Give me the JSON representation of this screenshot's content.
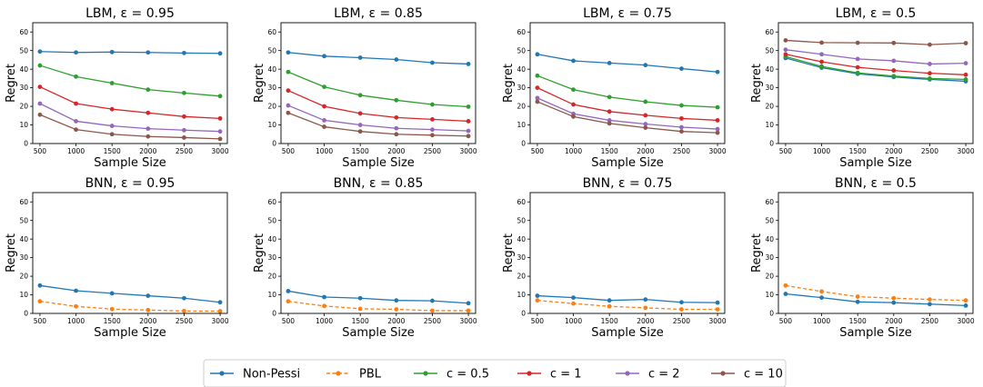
{
  "figure": {
    "legend": {
      "placement": "bottom-center",
      "entries": [
        {
          "name": "Non-Pessi",
          "color": "#1f77b4",
          "dashed": false
        },
        {
          "name": "PBL",
          "color": "#ff7f0e",
          "dashed": true
        },
        {
          "name": "c = 0.5",
          "color": "#2ca02c",
          "dashed": false
        },
        {
          "name": "c = 1",
          "color": "#d62728",
          "dashed": false
        },
        {
          "name": "c = 2",
          "color": "#9467bd",
          "dashed": false
        },
        {
          "name": "c = 10",
          "color": "#8c564b",
          "dashed": false
        }
      ]
    }
  },
  "chart_data": [
    {
      "type": "line",
      "title": "LBM, ε = 0.95",
      "xlabel": "Sample Size",
      "ylabel": "Regret",
      "x": [
        500,
        1000,
        1500,
        2000,
        2500,
        3000
      ],
      "xticks": [
        "500",
        "1000",
        "1500",
        "2000",
        "2500",
        "3000"
      ],
      "ylim": [
        0,
        65
      ],
      "yticks": [
        "0",
        "10",
        "20",
        "30",
        "40",
        "50",
        "60"
      ],
      "grid": false,
      "series": [
        {
          "name": "Non-Pessi",
          "color": "#1f77b4",
          "dashed": false,
          "values": [
            49.5,
            49,
            49.2,
            49,
            48.7,
            48.5
          ]
        },
        {
          "name": "c = 0.5",
          "color": "#2ca02c",
          "dashed": false,
          "values": [
            42,
            36,
            32.5,
            29,
            27.2,
            25.5
          ]
        },
        {
          "name": "c = 1",
          "color": "#d62728",
          "dashed": false,
          "values": [
            30.5,
            21.5,
            18.5,
            16.5,
            14.5,
            13.5
          ]
        },
        {
          "name": "c = 2",
          "color": "#9467bd",
          "dashed": false,
          "values": [
            21.5,
            12,
            9.5,
            8,
            7.2,
            6.5
          ]
        },
        {
          "name": "c = 10",
          "color": "#8c564b",
          "dashed": false,
          "values": [
            15.5,
            7.5,
            5,
            3.8,
            3.2,
            2.5
          ]
        }
      ]
    },
    {
      "type": "line",
      "title": "LBM, ε = 0.85",
      "xlabel": "Sample Size",
      "ylabel": "Regret",
      "x": [
        500,
        1000,
        1500,
        2000,
        2500,
        3000
      ],
      "xticks": [
        "500",
        "1000",
        "1500",
        "2000",
        "2500",
        "3000"
      ],
      "ylim": [
        0,
        65
      ],
      "yticks": [
        "0",
        "10",
        "20",
        "30",
        "40",
        "50",
        "60"
      ],
      "grid": false,
      "series": [
        {
          "name": "Non-Pessi",
          "color": "#1f77b4",
          "dashed": false,
          "values": [
            49,
            47,
            46.2,
            45.2,
            43.5,
            42.8
          ]
        },
        {
          "name": "c = 0.5",
          "color": "#2ca02c",
          "dashed": false,
          "values": [
            38.5,
            30.5,
            26,
            23.3,
            21,
            19.8
          ]
        },
        {
          "name": "c = 1",
          "color": "#d62728",
          "dashed": false,
          "values": [
            28.5,
            20,
            16.2,
            14,
            13,
            12
          ]
        },
        {
          "name": "c = 2",
          "color": "#9467bd",
          "dashed": false,
          "values": [
            20.5,
            12.5,
            10,
            8.2,
            7.5,
            6.8
          ]
        },
        {
          "name": "c = 10",
          "color": "#8c564b",
          "dashed": false,
          "values": [
            16.5,
            9,
            6.5,
            5,
            4.5,
            4
          ]
        }
      ]
    },
    {
      "type": "line",
      "title": "LBM, ε = 0.75",
      "xlabel": "Sample Size",
      "ylabel": "Regret",
      "x": [
        500,
        1000,
        1500,
        2000,
        2500,
        3000
      ],
      "xticks": [
        "500",
        "1000",
        "1500",
        "2000",
        "2500",
        "3000"
      ],
      "ylim": [
        0,
        65
      ],
      "yticks": [
        "0",
        "10",
        "20",
        "30",
        "40",
        "50",
        "60"
      ],
      "grid": false,
      "series": [
        {
          "name": "Non-Pessi",
          "color": "#1f77b4",
          "dashed": false,
          "values": [
            48,
            44.5,
            43.3,
            42.2,
            40.3,
            38.5
          ]
        },
        {
          "name": "c = 0.5",
          "color": "#2ca02c",
          "dashed": false,
          "values": [
            36.5,
            29,
            25,
            22.5,
            20.5,
            19.5
          ]
        },
        {
          "name": "c = 1",
          "color": "#d62728",
          "dashed": false,
          "values": [
            30,
            21,
            17.2,
            15.2,
            13.5,
            12.5
          ]
        },
        {
          "name": "c = 2",
          "color": "#9467bd",
          "dashed": false,
          "values": [
            24.5,
            16,
            12.5,
            10.5,
            8.8,
            7.8
          ]
        },
        {
          "name": "c = 10",
          "color": "#8c564b",
          "dashed": false,
          "values": [
            22.5,
            14.5,
            10.8,
            8.5,
            6.5,
            5.8
          ]
        }
      ]
    },
    {
      "type": "line",
      "title": "LBM, ε = 0.5",
      "xlabel": "Sample Size",
      "ylabel": "Regret",
      "x": [
        500,
        1000,
        1500,
        2000,
        2500,
        3000
      ],
      "xticks": [
        "500",
        "1000",
        "1500",
        "2000",
        "2500",
        "3000"
      ],
      "ylim": [
        0,
        65
      ],
      "yticks": [
        "0",
        "10",
        "20",
        "30",
        "40",
        "50",
        "60"
      ],
      "grid": false,
      "series": [
        {
          "name": "Non-Pessi",
          "color": "#1f77b4",
          "dashed": false,
          "values": [
            46,
            40.8,
            37.5,
            35.8,
            34.5,
            33.5
          ]
        },
        {
          "name": "c = 0.5",
          "color": "#2ca02c",
          "dashed": false,
          "values": [
            46.8,
            41.5,
            38,
            36.3,
            35,
            34.5
          ]
        },
        {
          "name": "c = 1",
          "color": "#d62728",
          "dashed": false,
          "values": [
            48,
            44,
            41,
            39.3,
            37.8,
            37
          ]
        },
        {
          "name": "c = 2",
          "color": "#9467bd",
          "dashed": false,
          "values": [
            50.5,
            48,
            45.5,
            44.5,
            42.8,
            43.2
          ]
        },
        {
          "name": "c = 10",
          "color": "#8c564b",
          "dashed": false,
          "values": [
            55.5,
            54.3,
            54.2,
            54.1,
            53.2,
            54
          ]
        }
      ]
    },
    {
      "type": "line",
      "title": "BNN, ε = 0.95",
      "xlabel": "Sample Size",
      "ylabel": "Regret",
      "x": [
        500,
        1000,
        1500,
        2000,
        2500,
        3000
      ],
      "xticks": [
        "500",
        "1000",
        "1500",
        "2000",
        "2500",
        "3000"
      ],
      "ylim": [
        0,
        65
      ],
      "yticks": [
        "0",
        "10",
        "20",
        "30",
        "40",
        "50",
        "60"
      ],
      "grid": false,
      "series": [
        {
          "name": "Non-Pessi",
          "color": "#1f77b4",
          "dashed": false,
          "values": [
            15,
            12.2,
            10.8,
            9.5,
            8.2,
            6
          ]
        },
        {
          "name": "PBL",
          "color": "#ff7f0e",
          "dashed": true,
          "values": [
            6.5,
            3.8,
            2.3,
            1.8,
            1.3,
            1.2
          ]
        }
      ]
    },
    {
      "type": "line",
      "title": "BNN, ε = 0.85",
      "xlabel": "Sample Size",
      "ylabel": "Regret",
      "x": [
        500,
        1000,
        1500,
        2000,
        2500,
        3000
      ],
      "xticks": [
        "500",
        "1000",
        "1500",
        "2000",
        "2500",
        "3000"
      ],
      "ylim": [
        0,
        65
      ],
      "yticks": [
        "0",
        "10",
        "20",
        "30",
        "40",
        "50",
        "60"
      ],
      "grid": false,
      "series": [
        {
          "name": "Non-Pessi",
          "color": "#1f77b4",
          "dashed": false,
          "values": [
            12,
            8.8,
            8.2,
            7,
            6.8,
            5.5
          ]
        },
        {
          "name": "PBL",
          "color": "#ff7f0e",
          "dashed": true,
          "values": [
            6.5,
            4,
            2.5,
            2.2,
            1.5,
            1.5
          ]
        }
      ]
    },
    {
      "type": "line",
      "title": "BNN, ε = 0.75",
      "xlabel": "Sample Size",
      "ylabel": "Regret",
      "x": [
        500,
        1000,
        1500,
        2000,
        2500,
        3000
      ],
      "xticks": [
        "500",
        "1000",
        "1500",
        "2000",
        "2500",
        "3000"
      ],
      "ylim": [
        0,
        65
      ],
      "yticks": [
        "0",
        "10",
        "20",
        "30",
        "40",
        "50",
        "60"
      ],
      "grid": false,
      "series": [
        {
          "name": "Non-Pessi",
          "color": "#1f77b4",
          "dashed": false,
          "values": [
            9.5,
            8.5,
            7,
            7.5,
            6,
            5.8
          ]
        },
        {
          "name": "PBL",
          "color": "#ff7f0e",
          "dashed": true,
          "values": [
            7,
            5.3,
            3.8,
            3,
            2.2,
            2.2
          ]
        }
      ]
    },
    {
      "type": "line",
      "title": "BNN, ε = 0.5",
      "xlabel": "Sample Size",
      "ylabel": "Regret",
      "x": [
        500,
        1000,
        1500,
        2000,
        2500,
        3000
      ],
      "xticks": [
        "500",
        "1000",
        "1500",
        "2000",
        "2500",
        "3000"
      ],
      "ylim": [
        0,
        65
      ],
      "yticks": [
        "0",
        "10",
        "20",
        "30",
        "40",
        "50",
        "60"
      ],
      "grid": false,
      "series": [
        {
          "name": "Non-Pessi",
          "color": "#1f77b4",
          "dashed": false,
          "values": [
            10.5,
            8.5,
            6.2,
            5.8,
            5,
            4.2
          ]
        },
        {
          "name": "PBL",
          "color": "#ff7f0e",
          "dashed": true,
          "values": [
            15,
            11.8,
            9,
            8.2,
            7.5,
            7
          ]
        }
      ]
    }
  ]
}
